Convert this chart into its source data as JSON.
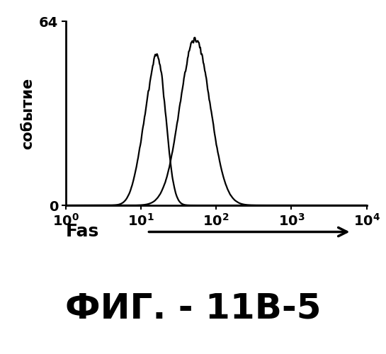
{
  "ylabel": "событие",
  "ylim": [
    0,
    64
  ],
  "yticks": [
    0,
    64
  ],
  "xlim": [
    1,
    10000
  ],
  "line_color": "#000000",
  "background_color": "#ffffff",
  "fig_label": "ФИГ. - 11В-5",
  "fig_label_fontsize": 36,
  "curve1_mu1": 1.1,
  "curve1_sigma1": 0.13,
  "curve1_amp1": 28,
  "curve1_mu2": 1.25,
  "curve1_sigma2": 0.1,
  "curve1_amp2": 35,
  "curve2_mu": 1.72,
  "curve2_sigma": 0.2,
  "curve2_amp": 58,
  "noise_scale": 1.5,
  "xlabel_fas": "Fas",
  "xlabel_fas_fontsize": 18,
  "tick_fontsize": 14
}
